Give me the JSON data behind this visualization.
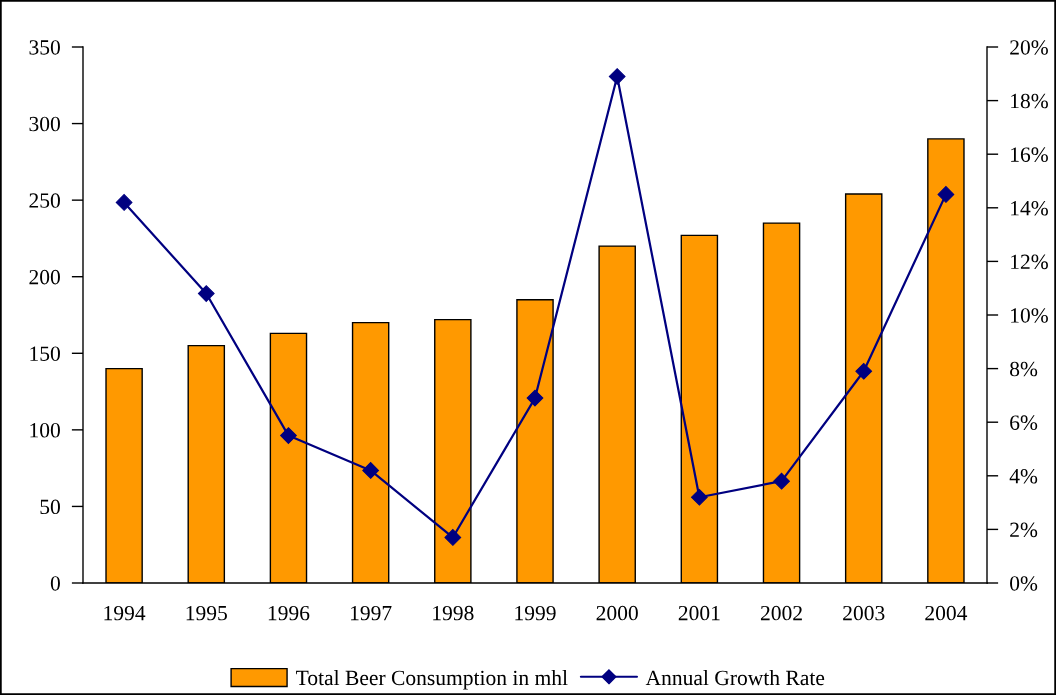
{
  "chart_data": {
    "type": "bar",
    "categories": [
      "1994",
      "1995",
      "1996",
      "1997",
      "1998",
      "1999",
      "2000",
      "2001",
      "2002",
      "2003",
      "2004"
    ],
    "series": [
      {
        "name": "Total Beer Consumption in mhl",
        "type": "bar",
        "color": "#ff9900",
        "values": [
          140,
          155,
          163,
          170,
          172,
          185,
          220,
          227,
          235,
          254,
          290
        ]
      },
      {
        "name": "Annual Growth Rate",
        "type": "line",
        "axis": "y2",
        "color": "#000080",
        "values": [
          14.2,
          10.8,
          5.5,
          4.2,
          1.7,
          6.9,
          18.9,
          3.2,
          3.8,
          7.9,
          14.5
        ]
      }
    ],
    "ylim": [
      0,
      350
    ],
    "yticks": [
      0,
      50,
      100,
      150,
      200,
      250,
      300,
      350
    ],
    "y2lim": [
      0,
      20
    ],
    "y2ticks": [
      {
        "value": 0,
        "label": "0%"
      },
      {
        "value": 2,
        "label": "2%"
      },
      {
        "value": 4,
        "label": "4%"
      },
      {
        "value": 6,
        "label": "6%"
      },
      {
        "value": 8,
        "label": "8%"
      },
      {
        "value": 10,
        "label": "10%"
      },
      {
        "value": 12,
        "label": "12%"
      },
      {
        "value": 14,
        "label": "14%"
      },
      {
        "value": 16,
        "label": "16%"
      },
      {
        "value": 18,
        "label": "18%"
      },
      {
        "value": 20,
        "label": "20%"
      }
    ],
    "legend": "bottom",
    "marker": "diamond",
    "line_style": "solid"
  }
}
